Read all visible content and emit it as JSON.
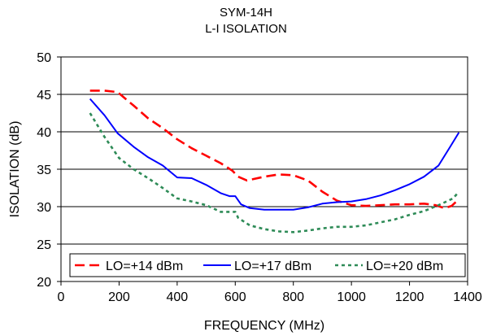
{
  "chart_data": {
    "type": "line",
    "title": "SYM-14H",
    "subtitle": "L-I ISOLATION",
    "xlabel": "FREQUENCY (MHz)",
    "ylabel": "ISOLATION (dB)",
    "xlim": [
      0,
      1400
    ],
    "ylim": [
      20,
      50
    ],
    "x_ticks": [
      0,
      200,
      400,
      600,
      800,
      1000,
      1200,
      1400
    ],
    "y_ticks": [
      20,
      25,
      30,
      35,
      40,
      45,
      50
    ],
    "grid": "horizontal",
    "legend_position": "bottom",
    "series": [
      {
        "name": "LO=+14 dBm",
        "color": "#ff0000",
        "style": "dashed",
        "x": [
          100,
          150,
          195,
          250,
          300,
          350,
          400,
          450,
          500,
          550,
          590,
          610,
          640,
          700,
          750,
          800,
          850,
          900,
          950,
          1000,
          1050,
          1100,
          1150,
          1200,
          1250,
          1290,
          1320,
          1345,
          1370
        ],
        "y": [
          45.5,
          45.5,
          45.3,
          43.5,
          41.8,
          40.5,
          39.0,
          37.8,
          36.8,
          35.8,
          34.8,
          34.0,
          33.5,
          34.0,
          34.3,
          34.2,
          33.5,
          32.0,
          30.8,
          30.2,
          30.1,
          30.2,
          30.3,
          30.3,
          30.4,
          30.2,
          29.8,
          30.1,
          31.0
        ]
      },
      {
        "name": "LO=+17 dBm",
        "color": "#0000ff",
        "style": "solid",
        "x": [
          100,
          150,
          195,
          250,
          300,
          350,
          400,
          450,
          500,
          550,
          580,
          600,
          620,
          650,
          700,
          800,
          850,
          900,
          950,
          1000,
          1050,
          1100,
          1150,
          1200,
          1250,
          1300,
          1340,
          1370
        ],
        "y": [
          44.4,
          42.2,
          39.8,
          38.0,
          36.6,
          35.5,
          33.9,
          33.8,
          32.9,
          31.8,
          31.4,
          31.4,
          30.3,
          29.8,
          29.6,
          29.6,
          29.9,
          30.4,
          30.6,
          30.7,
          31.0,
          31.5,
          32.2,
          33.0,
          34.0,
          35.5,
          38.0,
          39.9
        ]
      },
      {
        "name": "LO=+20 dBm",
        "color": "#2e8b57",
        "style": "dotted",
        "x": [
          100,
          150,
          200,
          250,
          300,
          350,
          400,
          450,
          500,
          550,
          600,
          610,
          650,
          700,
          750,
          800,
          850,
          900,
          950,
          1000,
          1050,
          1100,
          1150,
          1200,
          1250,
          1300,
          1350,
          1370
        ],
        "y": [
          42.5,
          39.3,
          36.5,
          35.0,
          33.8,
          32.5,
          31.1,
          30.7,
          30.2,
          29.3,
          29.3,
          28.5,
          27.5,
          27.0,
          26.7,
          26.6,
          26.8,
          27.1,
          27.3,
          27.3,
          27.5,
          27.9,
          28.3,
          28.9,
          29.4,
          30.2,
          31.1,
          32.0
        ]
      }
    ]
  }
}
